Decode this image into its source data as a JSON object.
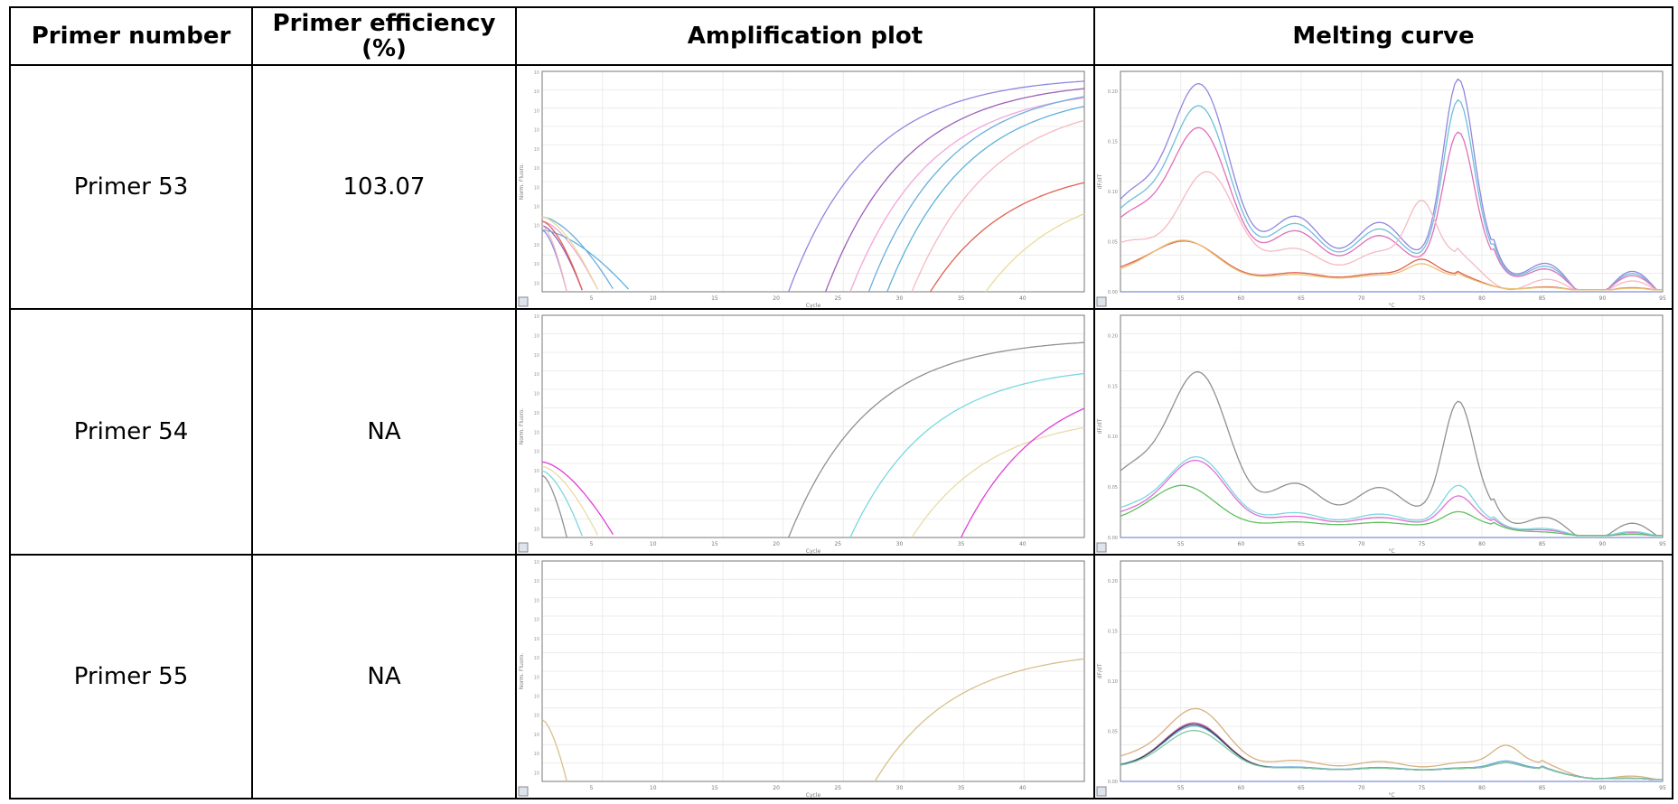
{
  "table": {
    "headers": [
      "Primer number",
      "Primer efficiency (%)",
      "Amplification plot",
      "Melting curve"
    ],
    "rows": [
      {
        "primer": "Primer 53",
        "efficiency": "103.07"
      },
      {
        "primer": "Primer 54",
        "efficiency": "NA"
      },
      {
        "primer": "Primer 55",
        "efficiency": "NA"
      }
    ]
  },
  "amplification_axes": {
    "xlabel": "Cycle",
    "ylabel": "Norm. Fluoro.",
    "xticks": [
      "5",
      "10",
      "15",
      "20",
      "25",
      "30",
      "35",
      "40"
    ]
  },
  "melting_axes": {
    "xlabel": "°C",
    "ylabel": "dF/dT",
    "xticks": [
      "55",
      "60",
      "65",
      "70",
      "75",
      "80",
      "85",
      "90",
      "95"
    ],
    "yticks": [
      "0.00",
      "0.05",
      "0.10",
      "0.15",
      "0.20"
    ]
  },
  "chart_data": [
    {
      "type": "line",
      "row": "Primer 53",
      "kind": "amplification",
      "x_range": [
        1,
        45
      ],
      "scale": "log",
      "series": [
        {
          "color": "#8f87e0",
          "rise_start": 21,
          "plateau": 0.98
        },
        {
          "color": "#9c5fb8",
          "rise_start": 24,
          "plateau": 0.96
        },
        {
          "color": "#f2a6d8",
          "rise_start": 26,
          "plateau": 0.93
        },
        {
          "color": "#6aaee0",
          "rise_start": 27.5,
          "plateau": 0.95
        },
        {
          "color": "#5fb2d8",
          "rise_start": 29,
          "plateau": 0.92
        },
        {
          "color": "#f5b9c2",
          "rise_start": 31,
          "plateau": 0.88
        },
        {
          "color": "#e06050",
          "rise_start": 32.5,
          "plateau": 0.58
        },
        {
          "color": "#e8dc9a",
          "rise_start": 37,
          "plateau": 0.5
        }
      ]
    },
    {
      "type": "line",
      "row": "Primer 53",
      "kind": "melting",
      "x_range": [
        50,
        95
      ],
      "y_range": [
        0,
        0.22
      ],
      "series": [
        {
          "color": "#8f87e0",
          "peaks": [
            [
              56,
              0.18
            ],
            [
              78,
              0.2
            ]
          ]
        },
        {
          "color": "#6fbfd8",
          "peaks": [
            [
              56,
              0.16
            ],
            [
              78,
              0.18
            ]
          ]
        },
        {
          "color": "#e06fb8",
          "peaks": [
            [
              56,
              0.14
            ],
            [
              78,
              0.145
            ]
          ]
        },
        {
          "color": "#f5b9c2",
          "peaks": [
            [
              57,
              0.1
            ],
            [
              75,
              0.09
            ]
          ]
        },
        {
          "color": "#e06050",
          "peaks": [
            [
              55,
              0.045
            ],
            [
              75,
              0.025
            ]
          ]
        },
        {
          "color": "#e8c070",
          "peaks": [
            [
              55,
              0.048
            ],
            [
              75,
              0.02
            ]
          ]
        }
      ]
    },
    {
      "type": "line",
      "row": "Primer 54",
      "kind": "amplification",
      "x_range": [
        1,
        45
      ],
      "scale": "log",
      "series": [
        {
          "color": "#909090",
          "rise_start": 21,
          "plateau": 0.9
        },
        {
          "color": "#7ad8e0",
          "rise_start": 26,
          "plateau": 0.78
        },
        {
          "color": "#e8dca8",
          "rise_start": 31,
          "plateau": 0.56
        },
        {
          "color": "#e040d8",
          "rise_start": 35,
          "plateau": 0.74
        }
      ]
    },
    {
      "type": "line",
      "row": "Primer 54",
      "kind": "melting",
      "x_range": [
        50,
        95
      ],
      "y_range": [
        0,
        0.22
      ],
      "series": [
        {
          "color": "#909090",
          "peaks": [
            [
              56,
              0.15
            ],
            [
              78,
              0.12
            ]
          ]
        },
        {
          "color": "#e06fd8",
          "peaks": [
            [
              56,
              0.075
            ],
            [
              78,
              0.03
            ]
          ]
        },
        {
          "color": "#7ad8e0",
          "peaks": [
            [
              56,
              0.075
            ],
            [
              78,
              0.04
            ]
          ]
        },
        {
          "color": "#60c060",
          "peaks": [
            [
              55,
              0.05
            ],
            [
              78,
              0.015
            ]
          ]
        }
      ]
    },
    {
      "type": "line",
      "row": "Primer 55",
      "kind": "amplification",
      "x_range": [
        1,
        45
      ],
      "scale": "log",
      "series": [
        {
          "color": "#d8c08a",
          "rise_start": 28,
          "plateau": 0.6
        }
      ]
    },
    {
      "type": "line",
      "row": "Primer 55",
      "kind": "melting",
      "x_range": [
        50,
        95
      ],
      "y_range": [
        0,
        0.22
      ],
      "series": [
        {
          "color": "#d8b080",
          "peaks": [
            [
              56,
              0.07
            ],
            [
              82,
              0.03
            ]
          ]
        },
        {
          "color": "#c05aa0",
          "peaks": [
            [
              56,
              0.06
            ],
            [
              82,
              0.01
            ]
          ]
        },
        {
          "color": "#6aaee0",
          "peaks": [
            [
              56,
              0.055
            ],
            [
              82,
              0.012
            ]
          ]
        },
        {
          "color": "#404050",
          "peaks": [
            [
              56,
              0.058
            ],
            [
              82,
              0.01
            ]
          ]
        },
        {
          "color": "#80c8a0",
          "peaks": [
            [
              56,
              0.05
            ],
            [
              82,
              0.01
            ]
          ]
        }
      ]
    }
  ]
}
